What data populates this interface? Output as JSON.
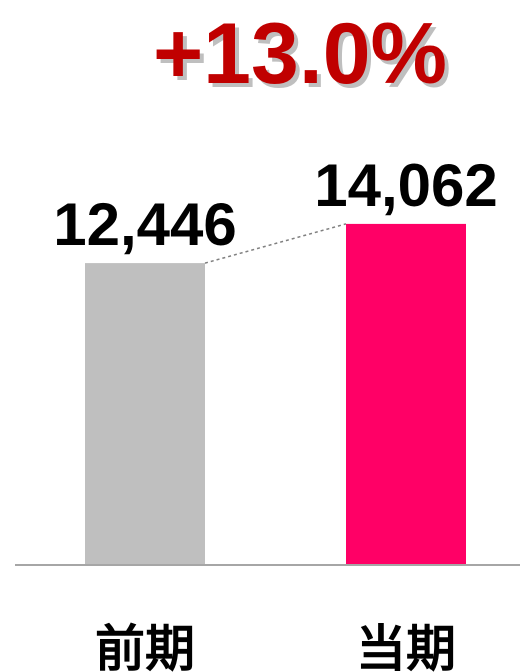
{
  "chart_data": {
    "type": "bar",
    "categories": [
      "前期",
      "当期"
    ],
    "values": [
      12446,
      14062
    ],
    "value_labels": [
      "12,446",
      "14,062"
    ],
    "change_label": "+13.0%",
    "colors": {
      "previous": "#bfbfbf",
      "current": "#ff0066",
      "change_text": "#c00000",
      "change_shadow": "#bfbfbf",
      "axis": "#a6a6a6",
      "connector": "#7f7f7f"
    },
    "ylim": [
      0,
      14800
    ],
    "grid": false,
    "legend": "none"
  }
}
